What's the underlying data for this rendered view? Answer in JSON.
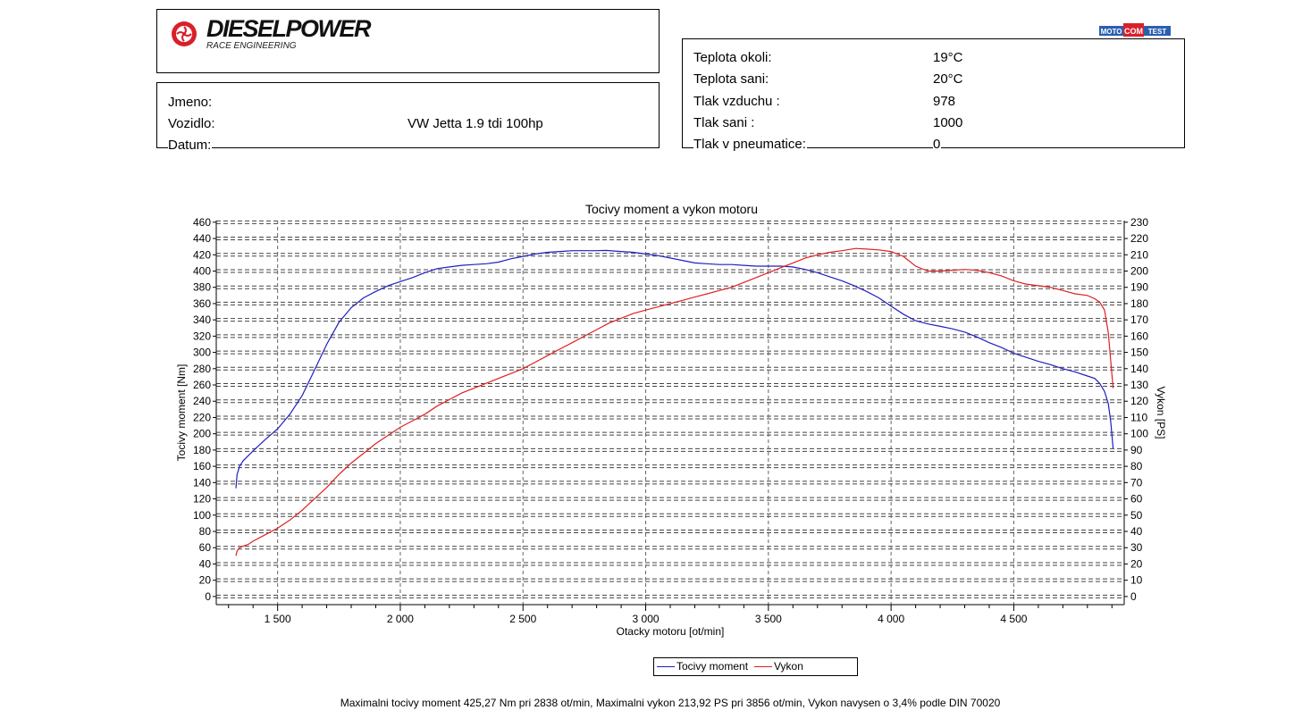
{
  "header": {
    "brand_name": "DIESELPOWER",
    "brand_sub": "RACE ENGINEERING",
    "badge_left": "MOTO",
    "badge_mid": "COM",
    "badge_right": "TEST",
    "brand_color": "#d9202a"
  },
  "vehicle": {
    "name_label": "Jmeno:",
    "name_value": "",
    "vehicle_label": "Vozidlo:",
    "vehicle_value": "VW Jetta 1.9 tdi 100hp",
    "date_label": "Datum:",
    "date_value": ""
  },
  "conditions": [
    {
      "label": "Teplota okoli:",
      "value": "19°C"
    },
    {
      "label": "Teplota sani:",
      "value": "20°C"
    },
    {
      "label": "Tlak vzduchu :",
      "value": "978"
    },
    {
      "label": "Tlak sani :",
      "value": "1000"
    },
    {
      "label": "Tlak v pneumatice:",
      "value": "0"
    }
  ],
  "chart_data": {
    "type": "line",
    "title": "Tocivy moment a vykon motoru",
    "xlabel": "Otacky motoru [ot/min]",
    "ylabel_left": "Tocivy moment [Nm]",
    "ylabel_right": "Vykon [PS]",
    "xlim": [
      1250,
      4950
    ],
    "ylim_left": [
      -10,
      462
    ],
    "ylim_right": [
      -5,
      231
    ],
    "x_ticks": [
      1500,
      2000,
      2500,
      3000,
      3500,
      4000,
      4500
    ],
    "x_tick_labels": [
      "1 500",
      "2 000",
      "2 500",
      "3 000",
      "3 500",
      "4 000",
      "4 500"
    ],
    "y_left_ticks": [
      0,
      20,
      40,
      60,
      80,
      100,
      120,
      140,
      160,
      180,
      200,
      220,
      240,
      260,
      280,
      300,
      320,
      340,
      360,
      380,
      400,
      420,
      440,
      460
    ],
    "y_right_ticks": [
      0,
      10,
      20,
      30,
      40,
      50,
      60,
      70,
      80,
      90,
      100,
      110,
      120,
      130,
      140,
      150,
      160,
      170,
      180,
      190,
      200,
      210,
      220,
      230
    ],
    "grid": true,
    "legend_position": "bottom-center",
    "series": [
      {
        "name": "Tocivy moment",
        "axis": "left",
        "color": "#1f1fbf",
        "x": [
          1330,
          1335,
          1345,
          1360,
          1380,
          1400,
          1450,
          1500,
          1550,
          1600,
          1650,
          1700,
          1750,
          1800,
          1850,
          1900,
          1950,
          2000,
          2050,
          2100,
          2150,
          2200,
          2250,
          2300,
          2350,
          2400,
          2450,
          2500,
          2550,
          2600,
          2650,
          2700,
          2750,
          2800,
          2838,
          2900,
          2950,
          3000,
          3050,
          3100,
          3150,
          3200,
          3250,
          3300,
          3350,
          3400,
          3450,
          3500,
          3550,
          3600,
          3650,
          3700,
          3750,
          3800,
          3850,
          3900,
          3950,
          4000,
          4050,
          4100,
          4150,
          4200,
          4250,
          4300,
          4350,
          4400,
          4450,
          4500,
          4550,
          4600,
          4650,
          4700,
          4750,
          4800,
          4830,
          4850,
          4870,
          4885,
          4895,
          4905
        ],
        "y": [
          133,
          150,
          160,
          167,
          173,
          179,
          193,
          206,
          224,
          247,
          278,
          310,
          337,
          355,
          367,
          375,
          382,
          387,
          392,
          398,
          403,
          405,
          407,
          408,
          409,
          411,
          415,
          418,
          421,
          423,
          424,
          425,
          425,
          425,
          425.3,
          424,
          423,
          421,
          419,
          416,
          413,
          410,
          409,
          408,
          408,
          407,
          406,
          406,
          406,
          405,
          402,
          398,
          393,
          388,
          382,
          375,
          367,
          357,
          347,
          339,
          335,
          332,
          329,
          325,
          319,
          312,
          306,
          299,
          294,
          289,
          285,
          280,
          276,
          271,
          268,
          262,
          252,
          237,
          215,
          182
        ]
      },
      {
        "name": "Vykon",
        "axis": "right",
        "color": "#e02020",
        "x": [
          1330,
          1335,
          1345,
          1360,
          1380,
          1400,
          1450,
          1500,
          1550,
          1600,
          1650,
          1700,
          1750,
          1800,
          1850,
          1900,
          1950,
          2000,
          2050,
          2100,
          2150,
          2200,
          2250,
          2300,
          2350,
          2400,
          2450,
          2500,
          2550,
          2600,
          2650,
          2700,
          2750,
          2800,
          2850,
          2900,
          2950,
          3000,
          3050,
          3100,
          3150,
          3200,
          3250,
          3300,
          3350,
          3400,
          3450,
          3500,
          3550,
          3600,
          3650,
          3700,
          3750,
          3800,
          3856,
          3900,
          3950,
          4000,
          4050,
          4100,
          4150,
          4200,
          4250,
          4300,
          4350,
          4400,
          4450,
          4500,
          4550,
          4600,
          4650,
          4700,
          4750,
          4800,
          4830,
          4850,
          4870,
          4885,
          4895,
          4905
        ],
        "y": [
          25,
          28,
          30,
          31,
          32,
          34,
          38,
          42,
          47,
          53,
          60,
          67,
          75,
          82,
          88,
          94,
          99,
          104,
          108,
          112,
          117,
          121,
          125,
          128,
          131,
          134,
          137,
          140,
          144,
          148,
          152,
          156,
          160,
          164,
          168,
          171,
          174,
          176,
          178,
          180,
          182,
          184,
          186,
          188,
          190,
          193,
          196,
          199,
          202,
          205,
          208,
          210,
          211.5,
          212.5,
          213.9,
          213.5,
          213,
          212,
          209,
          203,
          200,
          200,
          200.5,
          201,
          200.5,
          199,
          197,
          194,
          192,
          191,
          190,
          188,
          186,
          185,
          183,
          181,
          176,
          162,
          145,
          128
        ]
      }
    ]
  },
  "legend": {
    "torque": "Tocivy moment",
    "power": "Vykon"
  },
  "footer": {
    "summary": "Maximalni tocivy moment 425,27 Nm pri 2838 ot/min,  Maximalni vykon 213,92 PS pri 3856 ot/min,  Vykon navysen o 3,4% podle DIN 70020"
  }
}
